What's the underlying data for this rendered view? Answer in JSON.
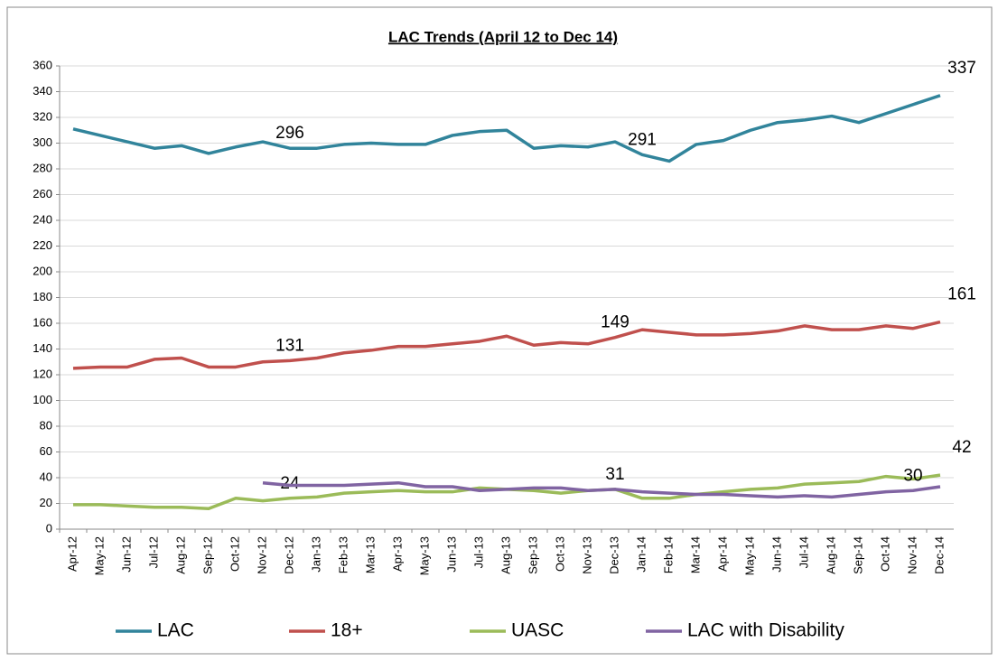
{
  "chart_data": {
    "type": "line",
    "title": "LAC Trends (April 12 to  Dec 14)",
    "categories": [
      "Apr-12",
      "May-12",
      "Jun-12",
      "Jul-12",
      "Aug-12",
      "Sep-12",
      "Oct-12",
      "Nov-12",
      "Dec-12",
      "Jan-13",
      "Feb-13",
      "Mar-13",
      "Apr-13",
      "May-13",
      "Jun-13",
      "Jul-13",
      "Aug-13",
      "Sep-13",
      "Oct-13",
      "Nov-13",
      "Dec-13",
      "Jan-14",
      "Feb-14",
      "Mar-14",
      "Apr-14",
      "May-14",
      "Jun-14",
      "Jul-14",
      "Aug-14",
      "Sep-14",
      "Oct-14",
      "Nov-14",
      "Dec-14"
    ],
    "series": [
      {
        "name": "LAC",
        "color": "#31849b",
        "values": [
          311,
          306,
          301,
          296,
          298,
          292,
          297,
          301,
          296,
          296,
          299,
          300,
          299,
          299,
          306,
          309,
          310,
          296,
          298,
          297,
          301,
          291,
          286,
          299,
          302,
          310,
          316,
          318,
          321,
          316,
          323,
          330,
          337
        ],
        "value_labels": [
          null,
          null,
          null,
          null,
          null,
          null,
          null,
          null,
          "296",
          null,
          null,
          null,
          null,
          null,
          null,
          null,
          null,
          null,
          null,
          null,
          null,
          "291",
          null,
          null,
          null,
          null,
          null,
          null,
          null,
          null,
          null,
          null,
          "337"
        ]
      },
      {
        "name": "18+",
        "color": "#c0504d",
        "values": [
          125,
          126,
          126,
          132,
          133,
          126,
          126,
          130,
          131,
          133,
          137,
          139,
          142,
          142,
          144,
          146,
          150,
          143,
          145,
          144,
          149,
          155,
          153,
          151,
          151,
          152,
          154,
          158,
          155,
          155,
          158,
          156,
          161
        ],
        "value_labels": [
          null,
          null,
          null,
          null,
          null,
          null,
          null,
          null,
          "131",
          null,
          null,
          null,
          null,
          null,
          null,
          null,
          null,
          null,
          null,
          null,
          "149",
          null,
          null,
          null,
          null,
          null,
          null,
          null,
          null,
          null,
          null,
          null,
          "161"
        ]
      },
      {
        "name": "UASC",
        "color": "#9bbb59",
        "values": [
          19,
          19,
          18,
          17,
          17,
          16,
          24,
          22,
          24,
          25,
          28,
          29,
          30,
          29,
          29,
          32,
          31,
          30,
          28,
          30,
          31,
          24,
          24,
          27,
          29,
          31,
          32,
          35,
          36,
          37,
          41,
          39,
          42
        ],
        "value_labels": [
          null,
          null,
          null,
          null,
          null,
          null,
          null,
          null,
          "24",
          null,
          null,
          null,
          null,
          null,
          null,
          null,
          null,
          null,
          null,
          null,
          null,
          null,
          null,
          null,
          null,
          null,
          null,
          null,
          null,
          null,
          null,
          null,
          "42"
        ]
      },
      {
        "name": "LAC with Disability",
        "color": "#8064a2",
        "values": [
          null,
          null,
          null,
          null,
          null,
          null,
          null,
          36,
          34,
          34,
          34,
          35,
          36,
          33,
          33,
          30,
          31,
          32,
          32,
          30,
          31,
          29,
          28,
          27,
          27,
          26,
          25,
          26,
          25,
          27,
          29,
          30,
          33
        ],
        "value_labels": [
          null,
          null,
          null,
          null,
          null,
          null,
          null,
          null,
          null,
          null,
          null,
          null,
          null,
          null,
          null,
          null,
          null,
          null,
          null,
          null,
          "31",
          null,
          null,
          null,
          null,
          null,
          null,
          null,
          null,
          null,
          null,
          "30",
          null
        ]
      }
    ],
    "ylim": [
      0,
      360
    ],
    "yticks": [
      0,
      20,
      40,
      60,
      80,
      100,
      120,
      140,
      160,
      180,
      200,
      220,
      240,
      260,
      280,
      300,
      320,
      340,
      360
    ],
    "grid": true,
    "legend": "bottom"
  }
}
